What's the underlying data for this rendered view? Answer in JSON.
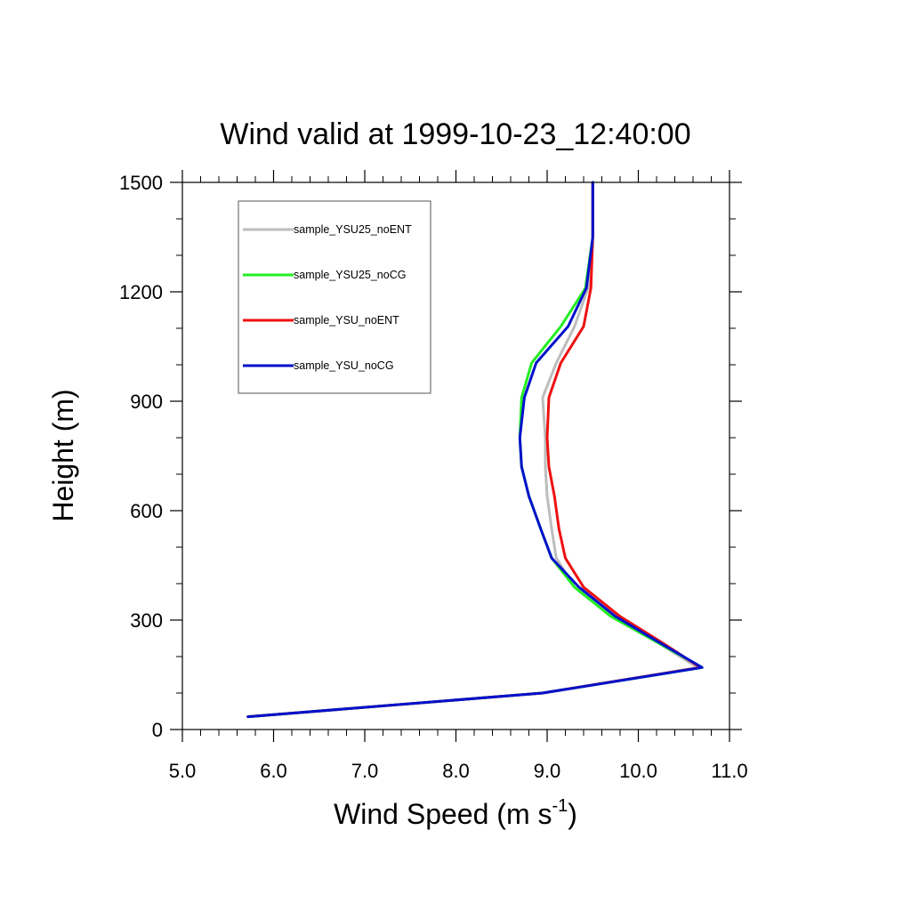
{
  "chart_data": {
    "type": "line",
    "title": "Wind valid at 1999-10-23_12:40:00",
    "xlabel": {
      "main": "Wind Speed (m s",
      "sup": "-1",
      "close": ")"
    },
    "ylabel": "Height (m)",
    "xlim": [
      5.0,
      11.0
    ],
    "ylim": [
      0,
      1500
    ],
    "x_ticks": [
      "5.0",
      "6.0",
      "7.0",
      "8.0",
      "9.0",
      "10.0",
      "11.0"
    ],
    "y_ticks": [
      "0",
      "300",
      "600",
      "900",
      "1200",
      "1500"
    ],
    "grid": false,
    "legend_position": "top-left",
    "series": [
      {
        "name": "sample_YSU25_noENT",
        "color": "#bdbdbd",
        "points": [
          [
            5.72,
            35
          ],
          [
            8.95,
            100
          ],
          [
            10.65,
            170
          ],
          [
            10.2,
            240
          ],
          [
            9.7,
            310
          ],
          [
            9.3,
            390
          ],
          [
            9.1,
            470
          ],
          [
            9.05,
            550
          ],
          [
            9.0,
            640
          ],
          [
            8.98,
            720
          ],
          [
            8.98,
            800
          ],
          [
            8.95,
            910
          ],
          [
            9.1,
            1005
          ],
          [
            9.3,
            1105
          ],
          [
            9.45,
            1210
          ],
          [
            9.5,
            1350
          ],
          [
            9.5,
            1500
          ]
        ]
      },
      {
        "name": "sample_YSU25_noCG",
        "color": "#22ee22",
        "points": [
          [
            5.72,
            35
          ],
          [
            8.95,
            100
          ],
          [
            10.7,
            170
          ],
          [
            10.2,
            240
          ],
          [
            9.7,
            310
          ],
          [
            9.3,
            390
          ],
          [
            9.05,
            470
          ],
          [
            8.93,
            550
          ],
          [
            8.8,
            640
          ],
          [
            8.72,
            720
          ],
          [
            8.7,
            800
          ],
          [
            8.72,
            910
          ],
          [
            8.83,
            1005
          ],
          [
            9.15,
            1105
          ],
          [
            9.42,
            1210
          ],
          [
            9.5,
            1350
          ],
          [
            9.5,
            1500
          ]
        ]
      },
      {
        "name": "sample_YSU_noENT",
        "color": "#ee1111",
        "points": [
          [
            5.72,
            35
          ],
          [
            8.95,
            100
          ],
          [
            10.68,
            170
          ],
          [
            10.25,
            240
          ],
          [
            9.8,
            310
          ],
          [
            9.4,
            390
          ],
          [
            9.2,
            470
          ],
          [
            9.13,
            550
          ],
          [
            9.08,
            640
          ],
          [
            9.02,
            720
          ],
          [
            9.0,
            800
          ],
          [
            9.02,
            910
          ],
          [
            9.15,
            1005
          ],
          [
            9.4,
            1105
          ],
          [
            9.48,
            1210
          ],
          [
            9.5,
            1350
          ],
          [
            9.5,
            1500
          ]
        ]
      },
      {
        "name": "sample_YSU_noCG",
        "color": "#0011cc",
        "points": [
          [
            5.72,
            35
          ],
          [
            8.95,
            100
          ],
          [
            10.7,
            170
          ],
          [
            10.22,
            240
          ],
          [
            9.75,
            310
          ],
          [
            9.35,
            390
          ],
          [
            9.05,
            470
          ],
          [
            8.93,
            550
          ],
          [
            8.8,
            640
          ],
          [
            8.72,
            720
          ],
          [
            8.7,
            800
          ],
          [
            8.75,
            910
          ],
          [
            8.88,
            1005
          ],
          [
            9.23,
            1105
          ],
          [
            9.43,
            1210
          ],
          [
            9.5,
            1350
          ],
          [
            9.5,
            1500
          ]
        ]
      }
    ]
  }
}
